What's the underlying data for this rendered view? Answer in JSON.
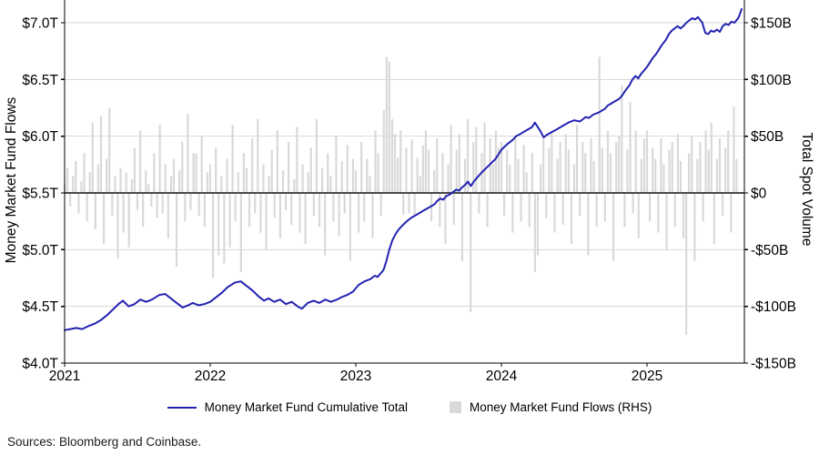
{
  "header": {},
  "axes": {
    "left_title": "Money Market Fund Flows",
    "right_title": "Total Spot Volume",
    "left_tick_labels": [
      "$7.0T",
      "$6.5T",
      "$6.0T",
      "$5.5T",
      "$5.0T",
      "$4.5T",
      "$4.0T"
    ],
    "right_tick_labels": [
      "$150B",
      "$100B",
      "$50B",
      "$0",
      "-$50B",
      "-$100B",
      "-$150B"
    ],
    "x_tick_labels": [
      "2021",
      "2022",
      "2023",
      "2024",
      "2025"
    ]
  },
  "legend": {
    "line_label": "Money Market Fund Cumulative Total",
    "bar_label": "Money Market Fund Flows (RHS)"
  },
  "footer": {
    "sources": "Sources: Bloomberg and Coinbase."
  },
  "colors": {
    "line": "#2222b2",
    "bar": "#d9d9d9",
    "grid": "#d9d9d9",
    "zero_line": "#4a4a4a",
    "axis": "#000000",
    "text": "#000000"
  },
  "chart_data": {
    "type": "line+bar",
    "title": "",
    "x_axis": {
      "unit": "year",
      "range": [
        2021.0,
        2025.67
      ],
      "tick_values": [
        2021,
        2022,
        2023,
        2024,
        2025
      ]
    },
    "left_axis": {
      "label": "Money Market Fund Flows",
      "unit": "$ trillions",
      "range": [
        4.0,
        7.0
      ],
      "tick_step": 0.5
    },
    "right_axis": {
      "label": "Total Spot Volume",
      "unit": "$ billions",
      "range": [
        -150,
        150
      ],
      "tick_step": 50
    },
    "grid": "horizontal-only",
    "legend_position": "bottom-center",
    "series": [
      {
        "name": "Money Market Fund Cumulative Total",
        "type": "line",
        "axis": "left",
        "unit": "$T",
        "points": [
          [
            2021.0,
            4.29
          ],
          [
            2021.04,
            4.3
          ],
          [
            2021.08,
            4.31
          ],
          [
            2021.12,
            4.3
          ],
          [
            2021.17,
            4.33
          ],
          [
            2021.21,
            4.35
          ],
          [
            2021.25,
            4.38
          ],
          [
            2021.29,
            4.42
          ],
          [
            2021.33,
            4.47
          ],
          [
            2021.37,
            4.52
          ],
          [
            2021.4,
            4.55
          ],
          [
            2021.44,
            4.5
          ],
          [
            2021.48,
            4.52
          ],
          [
            2021.52,
            4.56
          ],
          [
            2021.56,
            4.54
          ],
          [
            2021.6,
            4.56
          ],
          [
            2021.65,
            4.6
          ],
          [
            2021.69,
            4.61
          ],
          [
            2021.73,
            4.57
          ],
          [
            2021.77,
            4.53
          ],
          [
            2021.81,
            4.49
          ],
          [
            2021.85,
            4.51
          ],
          [
            2021.88,
            4.53
          ],
          [
            2021.92,
            4.51
          ],
          [
            2021.96,
            4.52
          ],
          [
            2022.0,
            4.54
          ],
          [
            2022.04,
            4.58
          ],
          [
            2022.08,
            4.62
          ],
          [
            2022.12,
            4.67
          ],
          [
            2022.17,
            4.71
          ],
          [
            2022.21,
            4.72
          ],
          [
            2022.25,
            4.68
          ],
          [
            2022.29,
            4.64
          ],
          [
            2022.33,
            4.59
          ],
          [
            2022.37,
            4.55
          ],
          [
            2022.4,
            4.57
          ],
          [
            2022.44,
            4.54
          ],
          [
            2022.48,
            4.56
          ],
          [
            2022.52,
            4.52
          ],
          [
            2022.56,
            4.54
          ],
          [
            2022.6,
            4.5
          ],
          [
            2022.63,
            4.48
          ],
          [
            2022.67,
            4.53
          ],
          [
            2022.71,
            4.55
          ],
          [
            2022.75,
            4.53
          ],
          [
            2022.79,
            4.56
          ],
          [
            2022.83,
            4.54
          ],
          [
            2022.87,
            4.56
          ],
          [
            2022.9,
            4.58
          ],
          [
            2022.94,
            4.6
          ],
          [
            2022.98,
            4.63
          ],
          [
            2023.02,
            4.69
          ],
          [
            2023.06,
            4.72
          ],
          [
            2023.1,
            4.74
          ],
          [
            2023.13,
            4.77
          ],
          [
            2023.15,
            4.76
          ],
          [
            2023.17,
            4.79
          ],
          [
            2023.19,
            4.82
          ],
          [
            2023.21,
            4.9
          ],
          [
            2023.23,
            5.0
          ],
          [
            2023.25,
            5.08
          ],
          [
            2023.27,
            5.13
          ],
          [
            2023.29,
            5.17
          ],
          [
            2023.31,
            5.2
          ],
          [
            2023.35,
            5.25
          ],
          [
            2023.38,
            5.28
          ],
          [
            2023.42,
            5.31
          ],
          [
            2023.46,
            5.34
          ],
          [
            2023.5,
            5.37
          ],
          [
            2023.54,
            5.4
          ],
          [
            2023.56,
            5.43
          ],
          [
            2023.58,
            5.45
          ],
          [
            2023.6,
            5.44
          ],
          [
            2023.62,
            5.47
          ],
          [
            2023.65,
            5.49
          ],
          [
            2023.67,
            5.51
          ],
          [
            2023.69,
            5.53
          ],
          [
            2023.71,
            5.52
          ],
          [
            2023.73,
            5.55
          ],
          [
            2023.75,
            5.57
          ],
          [
            2023.77,
            5.6
          ],
          [
            2023.79,
            5.56
          ],
          [
            2023.81,
            5.6
          ],
          [
            2023.83,
            5.63
          ],
          [
            2023.85,
            5.66
          ],
          [
            2023.88,
            5.7
          ],
          [
            2023.92,
            5.75
          ],
          [
            2023.96,
            5.8
          ],
          [
            2024.0,
            5.88
          ],
          [
            2024.04,
            5.93
          ],
          [
            2024.08,
            5.97
          ],
          [
            2024.1,
            6.0
          ],
          [
            2024.13,
            6.02
          ],
          [
            2024.17,
            6.05
          ],
          [
            2024.21,
            6.08
          ],
          [
            2024.23,
            6.12
          ],
          [
            2024.25,
            6.08
          ],
          [
            2024.27,
            6.04
          ],
          [
            2024.29,
            5.99
          ],
          [
            2024.31,
            6.01
          ],
          [
            2024.35,
            6.04
          ],
          [
            2024.38,
            6.06
          ],
          [
            2024.42,
            6.09
          ],
          [
            2024.46,
            6.12
          ],
          [
            2024.5,
            6.14
          ],
          [
            2024.54,
            6.13
          ],
          [
            2024.58,
            6.17
          ],
          [
            2024.6,
            6.16
          ],
          [
            2024.63,
            6.19
          ],
          [
            2024.67,
            6.21
          ],
          [
            2024.71,
            6.24
          ],
          [
            2024.73,
            6.27
          ],
          [
            2024.77,
            6.3
          ],
          [
            2024.81,
            6.33
          ],
          [
            2024.83,
            6.36
          ],
          [
            2024.85,
            6.4
          ],
          [
            2024.88,
            6.45
          ],
          [
            2024.9,
            6.5
          ],
          [
            2024.92,
            6.53
          ],
          [
            2024.94,
            6.51
          ],
          [
            2024.96,
            6.55
          ],
          [
            2024.98,
            6.58
          ],
          [
            2025.0,
            6.61
          ],
          [
            2025.02,
            6.65
          ],
          [
            2025.04,
            6.69
          ],
          [
            2025.06,
            6.72
          ],
          [
            2025.08,
            6.76
          ],
          [
            2025.1,
            6.8
          ],
          [
            2025.13,
            6.85
          ],
          [
            2025.15,
            6.9
          ],
          [
            2025.17,
            6.93
          ],
          [
            2025.19,
            6.95
          ],
          [
            2025.21,
            6.97
          ],
          [
            2025.23,
            6.95
          ],
          [
            2025.25,
            6.97
          ],
          [
            2025.27,
            7.0
          ],
          [
            2025.29,
            7.02
          ],
          [
            2025.31,
            7.04
          ],
          [
            2025.33,
            7.03
          ],
          [
            2025.35,
            7.05
          ],
          [
            2025.38,
            7.0
          ],
          [
            2025.4,
            6.91
          ],
          [
            2025.42,
            6.9
          ],
          [
            2025.44,
            6.93
          ],
          [
            2025.46,
            6.92
          ],
          [
            2025.48,
            6.94
          ],
          [
            2025.5,
            6.92
          ],
          [
            2025.52,
            6.97
          ],
          [
            2025.54,
            6.99
          ],
          [
            2025.56,
            6.98
          ],
          [
            2025.58,
            7.01
          ],
          [
            2025.6,
            7.0
          ],
          [
            2025.62,
            7.03
          ],
          [
            2025.63,
            7.05
          ],
          [
            2025.65,
            7.12
          ]
        ]
      },
      {
        "name": "Money Market Fund Flows (RHS)",
        "type": "bar",
        "axis": "right",
        "unit": "$B",
        "start": 2021.0,
        "step": 0.019231,
        "values": [
          8,
          22,
          -12,
          15,
          28,
          -18,
          10,
          35,
          -25,
          18,
          62,
          -32,
          25,
          68,
          -45,
          30,
          75,
          -20,
          15,
          -58,
          22,
          -35,
          18,
          -48,
          12,
          40,
          -15,
          55,
          -30,
          20,
          8,
          -12,
          35,
          -22,
          60,
          -18,
          25,
          -40,
          15,
          30,
          -65,
          20,
          45,
          -25,
          70,
          -15,
          35,
          35,
          -20,
          50,
          -30,
          18,
          25,
          -75,
          40,
          -55,
          15,
          -62,
          30,
          -48,
          60,
          -25,
          18,
          -70,
          35,
          22,
          -30,
          48,
          -18,
          65,
          -35,
          25,
          -50,
          15,
          38,
          -22,
          55,
          -40,
          20,
          -15,
          45,
          -28,
          12,
          58,
          -35,
          25,
          -45,
          18,
          40,
          -20,
          65,
          -30,
          22,
          -55,
          35,
          15,
          -25,
          50,
          -38,
          28,
          -18,
          42,
          -60,
          30,
          20,
          -35,
          45,
          -25,
          30,
          15,
          -40,
          55,
          35,
          -20,
          73,
          120,
          116,
          65,
          52,
          31,
          55,
          -19,
          40,
          -18,
          47,
          -20,
          31,
          15,
          42,
          55,
          38,
          -25,
          20,
          48,
          -30,
          35,
          -45,
          25,
          60,
          -28,
          38,
          52,
          -60,
          30,
          65,
          -105,
          45,
          58,
          -18,
          35,
          62,
          -30,
          48,
          25,
          55,
          40,
          45,
          -20,
          38,
          25,
          -35,
          50,
          30,
          -25,
          42,
          18,
          -30,
          35,
          -70,
          -55,
          25,
          48,
          -22,
          40,
          55,
          -35,
          30,
          45,
          -28,
          52,
          38,
          -45,
          25,
          60,
          -20,
          45,
          35,
          -55,
          48,
          28,
          -30,
          120,
          40,
          -25,
          55,
          35,
          -60,
          45,
          50,
          95,
          -30,
          38,
          80,
          -18,
          55,
          -40,
          30,
          48,
          55,
          -25,
          40,
          30,
          -35,
          48,
          25,
          -50,
          38,
          45,
          -30,
          52,
          28,
          -40,
          -125,
          35,
          50,
          -60,
          30,
          45,
          -25,
          55,
          38,
          62,
          -45,
          30,
          48,
          -20,
          40,
          55,
          -35,
          76,
          30
        ]
      }
    ]
  }
}
